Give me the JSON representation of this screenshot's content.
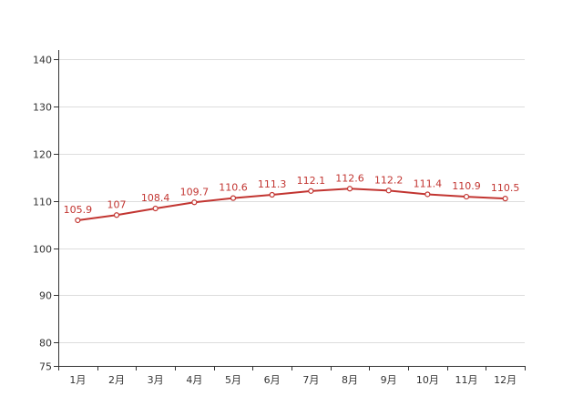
{
  "chart_data": {
    "type": "line",
    "title": "",
    "xlabel": "",
    "ylabel": "",
    "categories": [
      "1月",
      "2月",
      "3月",
      "4月",
      "5月",
      "6月",
      "7月",
      "8月",
      "9月",
      "10月",
      "11月",
      "12月"
    ],
    "series": [
      {
        "values": [
          105.9,
          107,
          108.4,
          109.7,
          110.6,
          111.3,
          112.1,
          112.6,
          112.2,
          111.4,
          110.9,
          110.5
        ],
        "color": "#c23531"
      }
    ],
    "ylim": [
      75,
      142
    ],
    "y_ticks": [
      75,
      80,
      90,
      100,
      110,
      120,
      130,
      140
    ],
    "grid": true,
    "data_labels": true,
    "legend": "none",
    "colors": {
      "line": "#c23531",
      "axis": "#333333",
      "grid": "#dddddd",
      "tick_label": "#333333",
      "data_label": "#c23531"
    }
  }
}
